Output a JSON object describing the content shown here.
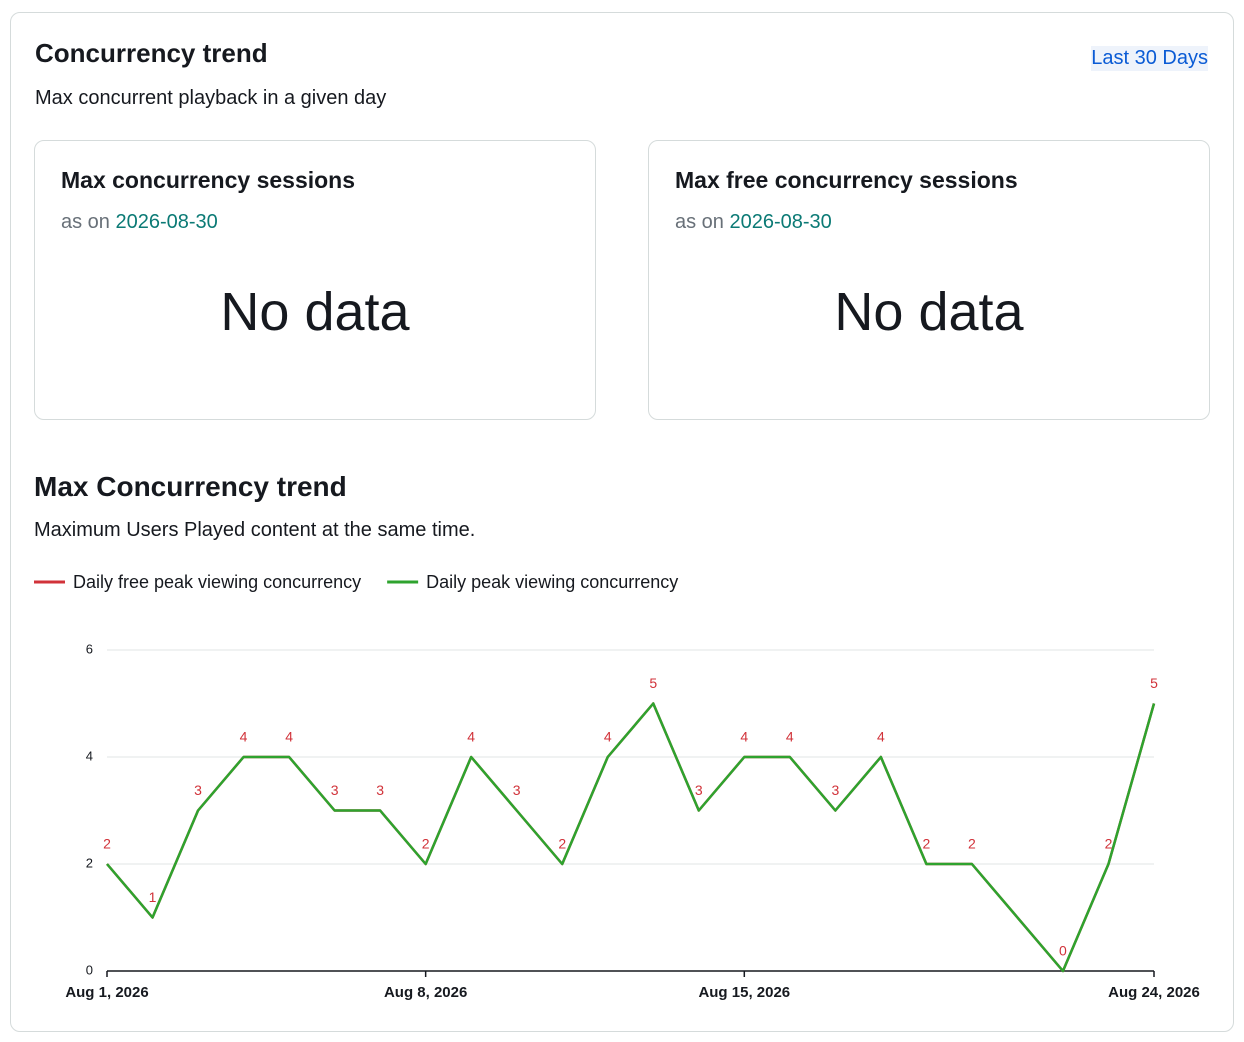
{
  "header": {
    "title": "Concurrency trend",
    "subtitle": "Max concurrent playback in a given day",
    "range": "Last 30 Days"
  },
  "cards": [
    {
      "title": "Max concurrency sessions",
      "as_on": "as on",
      "date": "2026-08-30",
      "value": "No data"
    },
    {
      "title": "Max free concurrency sessions",
      "as_on": "as on",
      "date": "2026-08-30",
      "value": "No data"
    }
  ],
  "chart_data": {
    "type": "line",
    "title": "Max Concurrency trend",
    "subtitle": "Maximum Users Played content at the same time.",
    "x": [
      "2026-08-01",
      "2026-08-02",
      "2026-08-03",
      "2026-08-04",
      "2026-08-05",
      "2026-08-06",
      "2026-08-07",
      "2026-08-08",
      "2026-08-09",
      "2026-08-10",
      "2026-08-11",
      "2026-08-12",
      "2026-08-13",
      "2026-08-14",
      "2026-08-15",
      "2026-08-16",
      "2026-08-17",
      "2026-08-18",
      "2026-08-19",
      "2026-08-20",
      "2026-08-22",
      "2026-08-23",
      "2026-08-24"
    ],
    "series": [
      {
        "name": "Daily free peak viewing concurrency",
        "color": "#d13239",
        "values": [
          2,
          1,
          3,
          4,
          4,
          3,
          3,
          2,
          4,
          3,
          2,
          4,
          5,
          3,
          4,
          4,
          3,
          4,
          2,
          2,
          0,
          2,
          5
        ],
        "show_labels": true
      },
      {
        "name": "Daily peak viewing concurrency",
        "color": "#2ea32e",
        "values": [
          2,
          1,
          3,
          4,
          4,
          3,
          3,
          2,
          4,
          3,
          2,
          4,
          5,
          3,
          4,
          4,
          3,
          4,
          2,
          2,
          0,
          2,
          5
        ]
      }
    ],
    "xlim": [
      "2026-08-01",
      "2026-08-24"
    ],
    "xticks": [
      {
        "value": "2026-08-01",
        "label": "Aug 1, 2026"
      },
      {
        "value": "2026-08-08",
        "label": "Aug 8, 2026"
      },
      {
        "value": "2026-08-15",
        "label": "Aug 15, 2026"
      },
      {
        "value": "2026-08-24",
        "label": "Aug 24, 2026"
      }
    ],
    "ylim": [
      0,
      6
    ],
    "yticks": [
      0,
      2,
      4,
      6
    ],
    "grid": true
  }
}
